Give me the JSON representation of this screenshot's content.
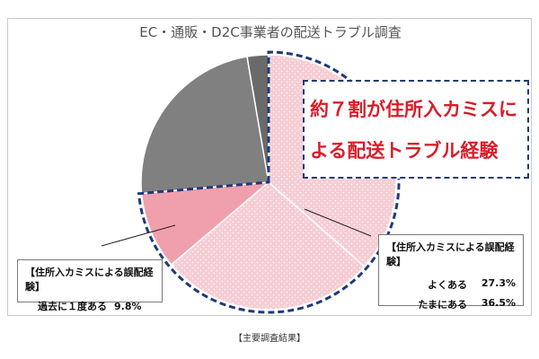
{
  "caption": "【主要調査結果】",
  "chart_data": {
    "type": "pie",
    "title": "EC・通販・D2C事業者の配送トラブル調査",
    "slices": [
      {
        "label": "たまにある",
        "value": 36.5,
        "color": "#f4c7cf"
      },
      {
        "label": "よくある",
        "value": 27.3,
        "color": "#f4c7cf"
      },
      {
        "label": "過去に１度ある",
        "value": 9.8,
        "color": "#f0a0ac"
      },
      {
        "label": "",
        "value": 23.7,
        "color": "#808080"
      },
      {
        "label": "",
        "value": 2.7,
        "color": "#6a6a6a"
      }
    ],
    "highlight_color": "#1f3a7a",
    "headline_lines": [
      "約７割が住所入カミスに",
      "よる配送トラブル経験"
    ],
    "headline_color": "#d81e2a",
    "callout_left": {
      "header": "【住所入カミスによる誤配経験】",
      "rows": [
        {
          "label": "過去に１度ある",
          "value": "9.8%"
        }
      ]
    },
    "callout_right": {
      "header": "【住所入カミスによる誤配経験】",
      "rows": [
        {
          "label": "よくある",
          "value": "27.3%"
        },
        {
          "label": "たまにある",
          "value": "36.5%"
        }
      ]
    }
  }
}
